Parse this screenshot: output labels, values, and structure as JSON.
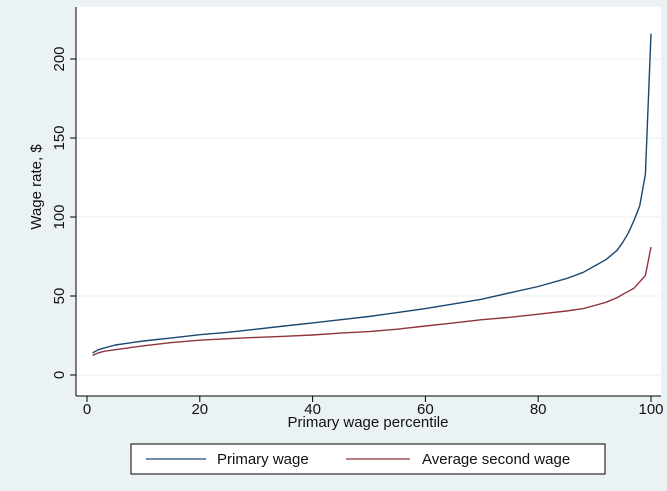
{
  "chart_data": {
    "type": "line",
    "title": "",
    "xlabel": "Primary wage percentile",
    "ylabel": "Wage rate, $",
    "xlim": [
      0,
      100
    ],
    "ylim": [
      0,
      220
    ],
    "x_ticks": [
      0,
      20,
      40,
      60,
      80,
      100
    ],
    "y_ticks": [
      0,
      50,
      100,
      150,
      200
    ],
    "grid": "horizontal",
    "legend_position": "bottom",
    "colors": {
      "background": "#eaf2f3",
      "plot_background": "#ffffff",
      "grid": "#eaf2f3"
    },
    "series": [
      {
        "name": "Primary wage",
        "color": "#1a476f",
        "points": [
          [
            1,
            14
          ],
          [
            2,
            16
          ],
          [
            3,
            17
          ],
          [
            5,
            19
          ],
          [
            8,
            20.5
          ],
          [
            10,
            21.5
          ],
          [
            15,
            23.5
          ],
          [
            20,
            25.5
          ],
          [
            25,
            27
          ],
          [
            30,
            29
          ],
          [
            35,
            31
          ],
          [
            40,
            33
          ],
          [
            45,
            35
          ],
          [
            50,
            37
          ],
          [
            55,
            39.5
          ],
          [
            60,
            42
          ],
          [
            65,
            45
          ],
          [
            70,
            48
          ],
          [
            75,
            52
          ],
          [
            80,
            56
          ],
          [
            85,
            61
          ],
          [
            88,
            65
          ],
          [
            90,
            69
          ],
          [
            92,
            73
          ],
          [
            94,
            79
          ],
          [
            95,
            84
          ],
          [
            96,
            90
          ],
          [
            97,
            98
          ],
          [
            98,
            107
          ],
          [
            99,
            127
          ],
          [
            100,
            216
          ]
        ]
      },
      {
        "name": "Average second wage",
        "color": "#90353b",
        "points": [
          [
            1,
            12.5
          ],
          [
            2,
            14
          ],
          [
            3,
            15
          ],
          [
            5,
            16
          ],
          [
            10,
            18.5
          ],
          [
            15,
            20.5
          ],
          [
            20,
            22
          ],
          [
            25,
            23
          ],
          [
            30,
            23.8
          ],
          [
            35,
            24.5
          ],
          [
            40,
            25.3
          ],
          [
            45,
            26.5
          ],
          [
            50,
            27.5
          ],
          [
            55,
            29
          ],
          [
            60,
            31
          ],
          [
            65,
            33
          ],
          [
            70,
            35
          ],
          [
            75,
            36.5
          ],
          [
            80,
            38.5
          ],
          [
            85,
            40.5
          ],
          [
            88,
            42
          ],
          [
            90,
            44
          ],
          [
            92,
            46
          ],
          [
            94,
            49
          ],
          [
            95,
            51
          ],
          [
            96,
            53
          ],
          [
            97,
            55
          ],
          [
            98,
            59
          ],
          [
            99,
            63
          ],
          [
            100,
            81
          ]
        ]
      }
    ]
  }
}
